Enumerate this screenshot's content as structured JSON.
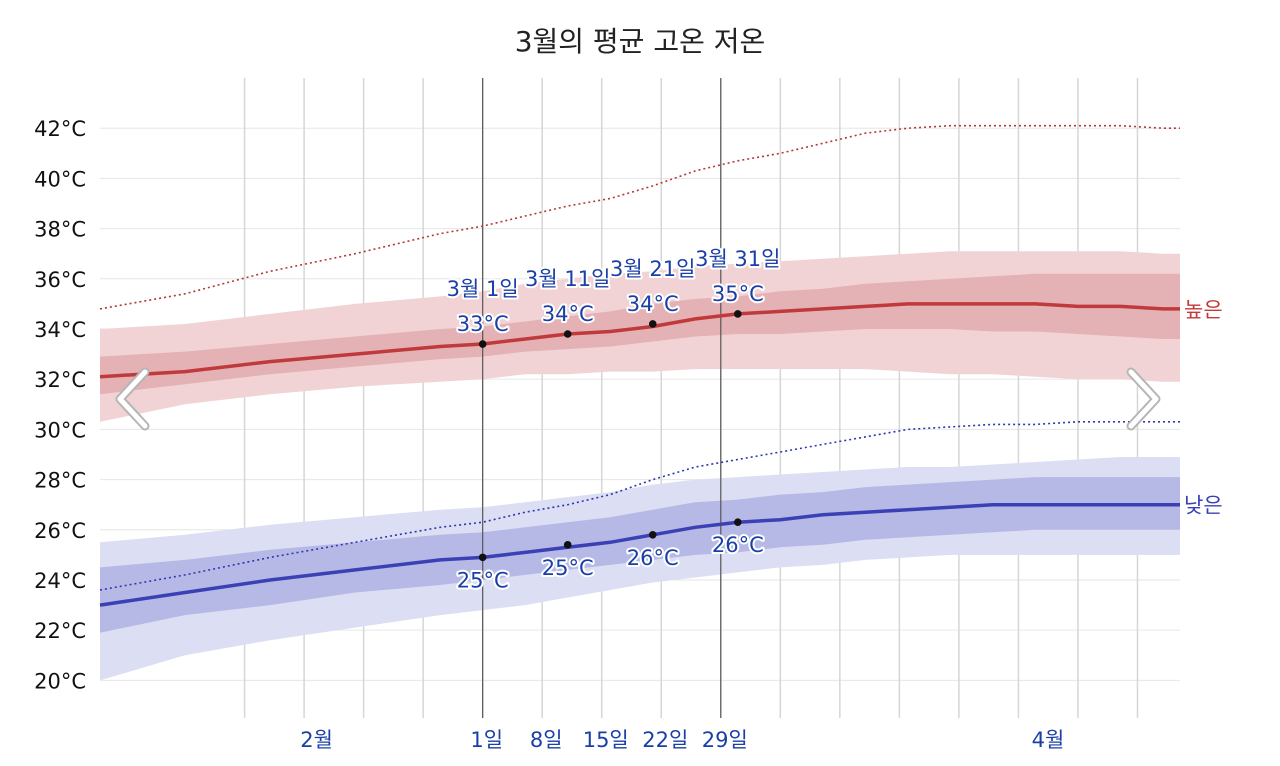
{
  "chart_data": {
    "type": "line",
    "title": "3월의 평균 고온 저온",
    "y_ticks": [
      {
        "value": 20,
        "label": "20°C"
      },
      {
        "value": 22,
        "label": "22°C"
      },
      {
        "value": 24,
        "label": "24°C"
      },
      {
        "value": 26,
        "label": "26°C"
      },
      {
        "value": 28,
        "label": "28°C"
      },
      {
        "value": 30,
        "label": "30°C"
      },
      {
        "value": 32,
        "label": "32°C"
      },
      {
        "value": 34,
        "label": "34°C"
      },
      {
        "value": 36,
        "label": "36°C"
      },
      {
        "value": 38,
        "label": "38°C"
      },
      {
        "value": 40,
        "label": "40°C"
      },
      {
        "value": 42,
        "label": "42°C"
      }
    ],
    "ylim": [
      18.5,
      44
    ],
    "x_domain_days": [
      -45,
      82
    ],
    "x_ticks": [
      {
        "day": -20,
        "label": "2월"
      },
      {
        "day": 0,
        "label": "1일"
      },
      {
        "day": 7,
        "label": "8일"
      },
      {
        "day": 14,
        "label": "15일"
      },
      {
        "day": 21,
        "label": "22일"
      },
      {
        "day": 28,
        "label": "29일"
      },
      {
        "day": 66,
        "label": "4월"
      }
    ],
    "month_boundaries": [
      -29,
      0,
      31
    ],
    "series": [
      {
        "name": "높은",
        "color": "#c0393b",
        "x": [
          -45,
          -35,
          -25,
          -15,
          -5,
          0,
          5,
          10,
          15,
          20,
          25,
          30,
          35,
          40,
          45,
          50,
          55,
          60,
          65,
          70,
          75,
          80,
          82
        ],
        "mean": [
          32.1,
          32.3,
          32.7,
          33.0,
          33.3,
          33.4,
          33.6,
          33.8,
          33.9,
          34.1,
          34.4,
          34.6,
          34.7,
          34.8,
          34.9,
          35.0,
          35.0,
          35.0,
          35.0,
          34.9,
          34.9,
          34.8,
          34.8
        ],
        "p25": [
          31.4,
          31.8,
          32.2,
          32.5,
          32.8,
          32.9,
          33.1,
          33.2,
          33.3,
          33.5,
          33.7,
          33.8,
          33.8,
          33.9,
          34.0,
          34.0,
          34.0,
          33.9,
          33.9,
          33.8,
          33.7,
          33.6,
          33.6
        ],
        "p75": [
          32.9,
          33.1,
          33.4,
          33.7,
          34.0,
          34.1,
          34.3,
          34.5,
          34.7,
          35.0,
          35.2,
          35.3,
          35.5,
          35.6,
          35.8,
          35.9,
          36.0,
          36.1,
          36.2,
          36.2,
          36.2,
          36.2,
          36.2
        ],
        "p10": [
          30.3,
          31.0,
          31.4,
          31.7,
          31.9,
          32.0,
          32.2,
          32.2,
          32.3,
          32.3,
          32.4,
          32.4,
          32.4,
          32.4,
          32.4,
          32.3,
          32.2,
          32.2,
          32.1,
          32.0,
          32.0,
          31.9,
          31.9
        ],
        "p90": [
          34.0,
          34.2,
          34.6,
          35.0,
          35.3,
          35.5,
          35.8,
          36.0,
          36.2,
          36.3,
          36.5,
          36.6,
          36.7,
          36.8,
          36.9,
          37.0,
          37.1,
          37.1,
          37.1,
          37.1,
          37.1,
          37.0,
          37.0
        ],
        "record": [
          34.8,
          35.4,
          36.3,
          37.0,
          37.8,
          38.1,
          38.5,
          38.9,
          39.2,
          39.7,
          40.3,
          40.7,
          41.0,
          41.4,
          41.8,
          42.0,
          42.1,
          42.1,
          42.1,
          42.1,
          42.1,
          42.0,
          42.0
        ]
      },
      {
        "name": "낮은",
        "color": "#3b41b5",
        "x": [
          -45,
          -35,
          -25,
          -15,
          -5,
          0,
          5,
          10,
          15,
          20,
          25,
          30,
          35,
          40,
          45,
          50,
          55,
          60,
          65,
          70,
          75,
          80,
          82
        ],
        "mean": [
          23.0,
          23.5,
          24.0,
          24.4,
          24.8,
          24.9,
          25.1,
          25.3,
          25.5,
          25.8,
          26.1,
          26.3,
          26.4,
          26.6,
          26.7,
          26.8,
          26.9,
          27.0,
          27.0,
          27.0,
          27.0,
          27.0,
          27.0
        ],
        "p25": [
          21.9,
          22.6,
          23.0,
          23.5,
          23.8,
          24.0,
          24.2,
          24.4,
          24.6,
          24.8,
          25.0,
          25.1,
          25.3,
          25.4,
          25.6,
          25.7,
          25.8,
          25.9,
          26.0,
          26.0,
          26.0,
          26.0,
          26.0
        ],
        "p75": [
          24.5,
          24.8,
          25.2,
          25.5,
          25.8,
          25.9,
          26.1,
          26.3,
          26.5,
          26.8,
          27.1,
          27.2,
          27.4,
          27.5,
          27.7,
          27.8,
          27.9,
          28.0,
          28.1,
          28.1,
          28.1,
          28.1,
          28.1
        ],
        "p10": [
          20.0,
          21.0,
          21.6,
          22.1,
          22.6,
          22.8,
          23.0,
          23.3,
          23.6,
          23.9,
          24.1,
          24.3,
          24.5,
          24.6,
          24.8,
          24.9,
          25.0,
          25.0,
          25.0,
          25.0,
          25.0,
          25.0,
          25.0
        ],
        "p90": [
          25.5,
          25.8,
          26.2,
          26.5,
          26.8,
          26.9,
          27.1,
          27.3,
          27.5,
          27.8,
          28.0,
          28.1,
          28.2,
          28.3,
          28.4,
          28.5,
          28.5,
          28.6,
          28.7,
          28.8,
          28.9,
          28.9,
          28.9
        ],
        "record": [
          23.6,
          24.2,
          24.9,
          25.5,
          26.1,
          26.3,
          26.7,
          27.0,
          27.4,
          28.0,
          28.5,
          28.8,
          29.1,
          29.4,
          29.7,
          30.0,
          30.1,
          30.2,
          30.2,
          30.3,
          30.3,
          30.3,
          30.3
        ]
      }
    ],
    "markers": [
      {
        "day": 0,
        "label": "3월 1일"
      },
      {
        "day": 10,
        "label": "3월 11일"
      },
      {
        "day": 20,
        "label": "3월 21일"
      },
      {
        "day": 30,
        "label": "3월 31일"
      }
    ],
    "annotations": {
      "high": [
        {
          "day": 0,
          "value": 33.4,
          "label": "33°C"
        },
        {
          "day": 10,
          "value": 33.8,
          "label": "34°C"
        },
        {
          "day": 20,
          "value": 34.2,
          "label": "34°C"
        },
        {
          "day": 30,
          "value": 34.6,
          "label": "35°C"
        }
      ],
      "low": [
        {
          "day": 0,
          "value": 24.9,
          "label": "25°C"
        },
        {
          "day": 10,
          "value": 25.4,
          "label": "25°C"
        },
        {
          "day": 20,
          "value": 25.8,
          "label": "26°C"
        },
        {
          "day": 30,
          "value": 26.3,
          "label": "26°C"
        }
      ]
    },
    "grid": true
  },
  "colors": {
    "high_line": "#c0393b",
    "high_band_outer": "#f1d3d5",
    "high_band_inner": "#e4b1b5",
    "high_record": "#b23a34",
    "low_line": "#3b41b5",
    "low_band_outer": "#dcdef3",
    "low_band_inner": "#b6b9e6",
    "low_record": "#2d37b0",
    "grid": "#e6e6e6",
    "axis_label": "#1a3fa6"
  },
  "nav": {
    "prev_icon": "chevron-left-icon",
    "next_icon": "chevron-right-icon"
  }
}
